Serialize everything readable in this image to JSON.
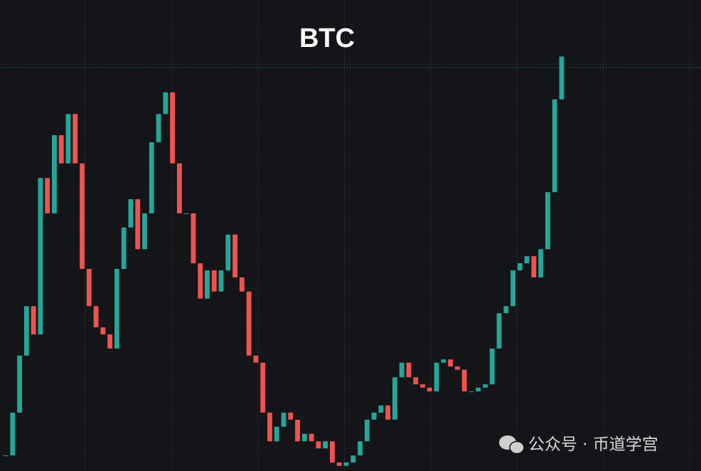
{
  "chart_data": {
    "type": "candlestick",
    "title": "BTC",
    "values": [
      3.3,
      12.4,
      24.5,
      35,
      29,
      62.2,
      54.7,
      71.3,
      65.3,
      75.8,
      65.3,
      42.9,
      35,
      30.5,
      29,
      26,
      42.9,
      51.7,
      57.7,
      47.1,
      54.7,
      69.8,
      75.8,
      80.4,
      65.3,
      54.7,
      54.7,
      44.1,
      36.6,
      42.6,
      38.1,
      42.6,
      50.2,
      41.1,
      38.1,
      24.5,
      23,
      12.4,
      6.3,
      9.4,
      12.4,
      10.9,
      6.3,
      7.9,
      6.3,
      4.8,
      6.3,
      1.8,
      1.1,
      1.8,
      3.3,
      6.3,
      10.9,
      12.4,
      13.9,
      10.9,
      19.9,
      23,
      19.9,
      18.4,
      17.7,
      16.9,
      23,
      23.7,
      22.2,
      21.5,
      16.9,
      16.9,
      17.7,
      18.4,
      26,
      33.5,
      35,
      42.6,
      44.1,
      45.6,
      41.1,
      47.1,
      59.2,
      78.9,
      88
    ],
    "up_color": "#26a69a",
    "down_color": "#ef5350",
    "ylim": [
      0,
      100
    ]
  },
  "watermark": "公众号 · 币道学宫"
}
